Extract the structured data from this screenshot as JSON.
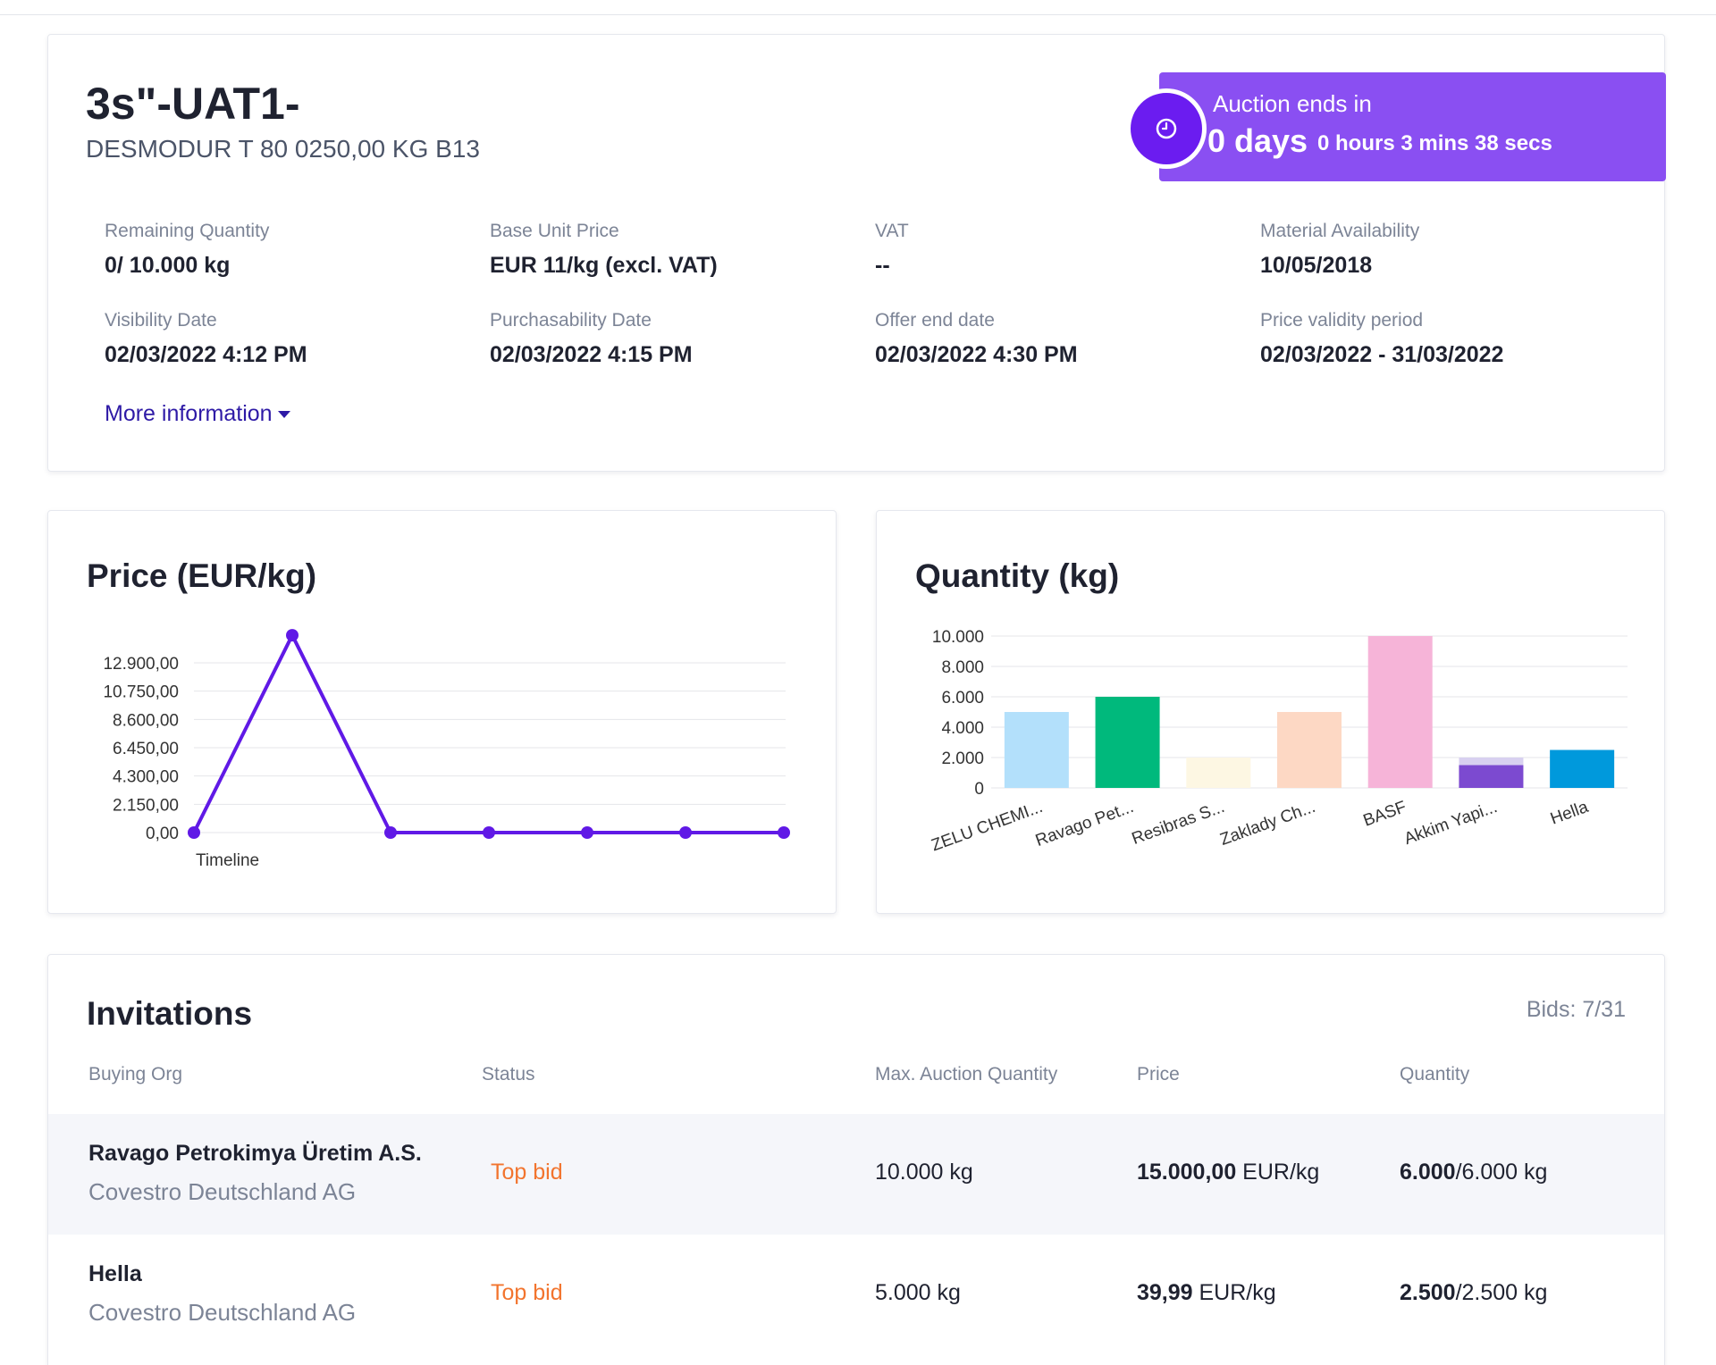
{
  "auction": {
    "title": "3s\"-UAT1-",
    "subtitle": "DESMODUR T 80 0250,00 KG B13",
    "timer": {
      "label": "Auction ends in",
      "days": "0 days",
      "rest": "0 hours 3 mins 38 secs",
      "icon": "clock-icon",
      "color": "#8a4ff2"
    },
    "fields": [
      {
        "label": "Remaining Quantity",
        "value": "0/ 10.000 kg"
      },
      {
        "label": "Base Unit Price",
        "value": "EUR 11/kg (excl. VAT)"
      },
      {
        "label": "VAT",
        "value": "--"
      },
      {
        "label": "Material Availability",
        "value": "10/05/2018"
      },
      {
        "label": "Visibility Date",
        "value": "02/03/2022 4:12 PM"
      },
      {
        "label": "Purchasability Date",
        "value": "02/03/2022 4:15 PM"
      },
      {
        "label": "Offer end date",
        "value": "02/03/2022 4:30 PM"
      },
      {
        "label": "Price validity period",
        "value": "02/03/2022 - 31/03/2022"
      }
    ],
    "more_link": "More information"
  },
  "price_chart": {
    "heading": "Price (EUR/kg)"
  },
  "quantity_chart": {
    "heading": "Quantity (kg)"
  },
  "chart_data": [
    {
      "type": "line",
      "title": "Price (EUR/kg)",
      "xlabel": "Timeline",
      "ylabel": "",
      "ylim": [
        0,
        12900
      ],
      "yticks": [
        "0,00",
        "2.150,00",
        "4.300,00",
        "6.450,00",
        "8.600,00",
        "10.750,00",
        "12.900,00"
      ],
      "y": [
        0,
        15000,
        0,
        0,
        0,
        0,
        0
      ],
      "color": "#6019e6",
      "grid": true
    },
    {
      "type": "bar",
      "title": "Quantity (kg)",
      "xlabel": "",
      "ylabel": "",
      "ylim": [
        0,
        10000
      ],
      "yticks": [
        "0",
        "2.000",
        "4.000",
        "6.000",
        "8.000",
        "10.000"
      ],
      "categories": [
        "ZELU CHEMI...",
        "Ravago Pet...",
        "Resibras S...",
        "Zaklady Ch...",
        "BASF",
        "Akkim Yapi...",
        "Hella"
      ],
      "values": [
        5000,
        6000,
        2000,
        5000,
        10000,
        2000,
        2500
      ],
      "stacked_dark_value": {
        "Akkim Yapi...": 1500
      },
      "colors": [
        "#b3e0fb",
        "#00b97c",
        "#fdf7e3",
        "#fdd8c4",
        "#f6b4d8",
        "#d8d0f0",
        "#0099dc"
      ],
      "dark_color": "#7c4ad0",
      "grid": true
    }
  ],
  "invitations": {
    "title": "Invitations",
    "bids": "Bids: 7/31",
    "columns": [
      "Buying Org",
      "Status",
      "Max. Auction Quantity",
      "Price",
      "Quantity"
    ],
    "rows": [
      {
        "org": "Ravago Petrokimya Üretim A.S.",
        "sub": "Covestro Deutschland AG",
        "status": "Top bid",
        "max_qty": "10.000 kg",
        "price_bold": "15.000,00",
        "price_unit": " EUR/kg",
        "qty_bold": "6.000",
        "qty_rest": "/6.000 kg"
      },
      {
        "org": "Hella",
        "sub": "Covestro Deutschland AG",
        "status": "Top bid",
        "max_qty": "5.000 kg",
        "price_bold": "39,99",
        "price_unit": " EUR/kg",
        "qty_bold": "2.500",
        "qty_rest": "/2.500 kg"
      }
    ]
  }
}
